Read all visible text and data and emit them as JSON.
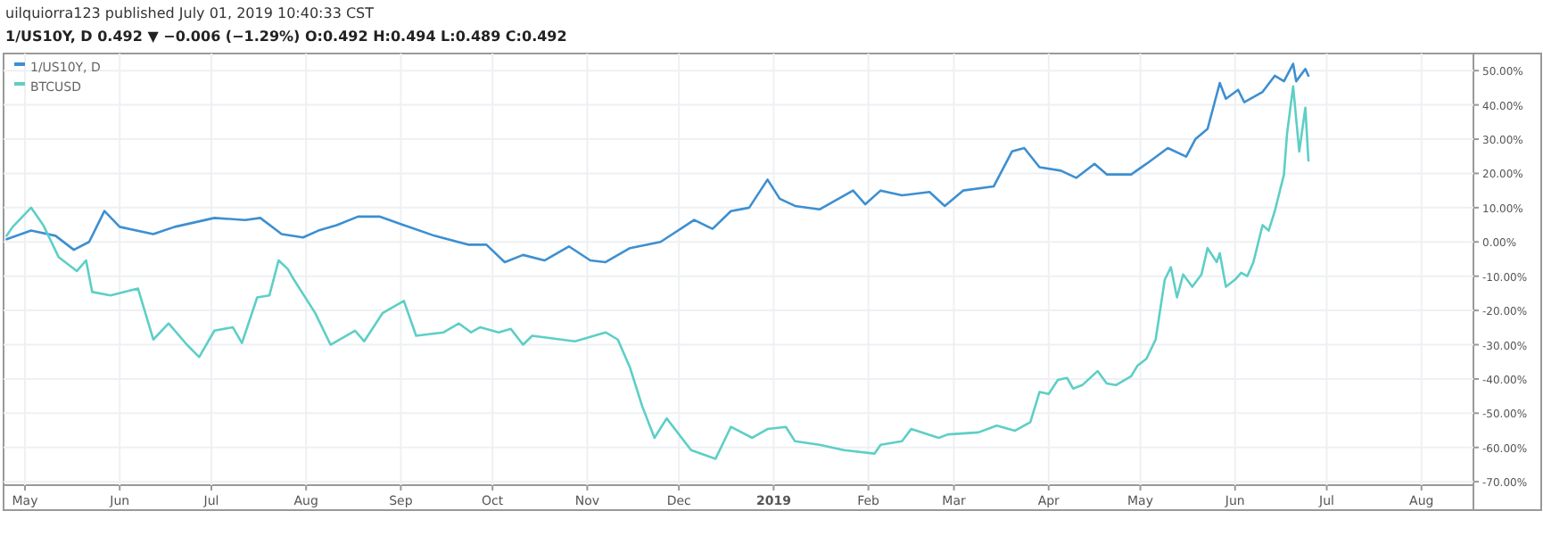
{
  "chart_data": {
    "type": "line",
    "title": "uilquiorra123 published July 01, 2019 10:40:33 CST",
    "subtitle": "1/US10Y, D 0.492 ▼ −0.006 (−1.29%) O:0.492 H:0.494 L:0.489 C:0.492",
    "xlim": [
      "2018-04-24",
      "2019-08-18"
    ],
    "xticks": [
      {
        "value": "2018-05-01",
        "label": "May"
      },
      {
        "value": "2018-06-01",
        "label": "Jun"
      },
      {
        "value": "2018-07-01",
        "label": "Jul"
      },
      {
        "value": "2018-08-01",
        "label": "Aug"
      },
      {
        "value": "2018-09-01",
        "label": "Sep"
      },
      {
        "value": "2018-10-01",
        "label": "Oct"
      },
      {
        "value": "2018-11-01",
        "label": "Nov"
      },
      {
        "value": "2018-12-01",
        "label": "Dec"
      },
      {
        "value": "2019-01-01",
        "label": "2019"
      },
      {
        "value": "2019-02-01",
        "label": "Feb"
      },
      {
        "value": "2019-03-01",
        "label": "Mar"
      },
      {
        "value": "2019-04-01",
        "label": "Apr"
      },
      {
        "value": "2019-05-01",
        "label": "May"
      },
      {
        "value": "2019-06-01",
        "label": "Jun"
      },
      {
        "value": "2019-07-01",
        "label": "Jul"
      },
      {
        "value": "2019-08-01",
        "label": "Aug"
      }
    ],
    "ylim": [
      -71,
      55
    ],
    "yticks": [
      {
        "value": 50,
        "label": "50.00%"
      },
      {
        "value": 40,
        "label": "40.00%"
      },
      {
        "value": 30,
        "label": "30.00%"
      },
      {
        "value": 20,
        "label": "20.00%"
      },
      {
        "value": 10,
        "label": "10.00%"
      },
      {
        "value": 0,
        "label": "0.00%"
      },
      {
        "value": -10,
        "label": "-10.00%"
      },
      {
        "value": -20,
        "label": "-20.00%"
      },
      {
        "value": -30,
        "label": "-30.00%"
      },
      {
        "value": -40,
        "label": "-40.00%"
      },
      {
        "value": -50,
        "label": "-50.00%"
      },
      {
        "value": -60,
        "label": "-60.00%"
      },
      {
        "value": -70,
        "label": "-70.00%"
      }
    ],
    "grid": true,
    "legend": "top left",
    "line_style": "solid",
    "marker": "none",
    "series": [
      {
        "name": "1/US10Y, D",
        "color": "#3d8fd1",
        "x": [
          "2018-04-25",
          "2018-05-03",
          "2018-05-11",
          "2018-05-17",
          "2018-05-22",
          "2018-05-27",
          "2018-06-01",
          "2018-06-12",
          "2018-06-19",
          "2018-07-02",
          "2018-07-12",
          "2018-07-17",
          "2018-07-24",
          "2018-07-31",
          "2018-08-05",
          "2018-08-11",
          "2018-08-18",
          "2018-08-25",
          "2018-09-02",
          "2018-09-12",
          "2018-09-23",
          "2018-09-29",
          "2018-10-05",
          "2018-10-11",
          "2018-10-18",
          "2018-10-26",
          "2018-11-02",
          "2018-11-07",
          "2018-11-15",
          "2018-11-25",
          "2018-12-06",
          "2018-12-12",
          "2018-12-18",
          "2018-12-24",
          "2018-12-30",
          "2019-01-03",
          "2019-01-08",
          "2019-01-16",
          "2019-01-27",
          "2019-01-31",
          "2019-02-05",
          "2019-02-12",
          "2019-02-21",
          "2019-02-26",
          "2019-03-04",
          "2019-03-14",
          "2019-03-20",
          "2019-03-24",
          "2019-03-29",
          "2019-04-05",
          "2019-04-10",
          "2019-04-16",
          "2019-04-20",
          "2019-04-28",
          "2019-05-03",
          "2019-05-10",
          "2019-05-16",
          "2019-05-19",
          "2019-05-23",
          "2019-05-27",
          "2019-05-29",
          "2019-06-02",
          "2019-06-04",
          "2019-06-10",
          "2019-06-14",
          "2019-06-17",
          "2019-06-20",
          "2019-06-21",
          "2019-06-24",
          "2019-06-25"
        ],
        "values": [
          0.8,
          3.3,
          1.8,
          -2.3,
          0,
          9,
          4.4,
          2.3,
          4.4,
          7,
          6.4,
          7,
          2.3,
          1.3,
          3.3,
          4.9,
          7.4,
          7.4,
          4.9,
          1.8,
          -0.8,
          -0.8,
          -5.9,
          -3.8,
          -5.4,
          -1.3,
          -5.4,
          -5.9,
          -1.8,
          0,
          6.4,
          3.8,
          9,
          10,
          18.2,
          12.6,
          10.5,
          9.5,
          15,
          11,
          15,
          13.6,
          14.6,
          10.5,
          15,
          16.2,
          26.4,
          27.4,
          21.8,
          20.8,
          18.7,
          22.8,
          19.7,
          19.7,
          22.8,
          27.4,
          24.9,
          30,
          33,
          46.4,
          41.8,
          44.4,
          40.8,
          43.8,
          48.5,
          46.9,
          52,
          46.9,
          50.5,
          48.5
        ]
      },
      {
        "name": "BTCUSD",
        "color": "#5dcfc6",
        "x": [
          "2018-04-25",
          "2018-04-27",
          "2018-05-03",
          "2018-05-07",
          "2018-05-12",
          "2018-05-18",
          "2018-05-21",
          "2018-05-23",
          "2018-05-29",
          "2018-06-07",
          "2018-06-12",
          "2018-06-17",
          "2018-06-23",
          "2018-06-27",
          "2018-07-02",
          "2018-07-08",
          "2018-07-11",
          "2018-07-16",
          "2018-07-20",
          "2018-07-23",
          "2018-07-26",
          "2018-07-28",
          "2018-08-04",
          "2018-08-09",
          "2018-08-17",
          "2018-08-20",
          "2018-08-26",
          "2018-09-02",
          "2018-09-06",
          "2018-09-15",
          "2018-09-20",
          "2018-09-24",
          "2018-09-27",
          "2018-10-03",
          "2018-10-07",
          "2018-10-11",
          "2018-10-14",
          "2018-10-28",
          "2018-11-07",
          "2018-11-11",
          "2018-11-15",
          "2018-11-19",
          "2018-11-23",
          "2018-11-27",
          "2018-12-05",
          "2018-12-13",
          "2018-12-18",
          "2018-12-25",
          "2018-12-30",
          "2019-01-05",
          "2019-01-08",
          "2019-01-16",
          "2019-01-24",
          "2019-02-03",
          "2019-02-05",
          "2019-02-12",
          "2019-02-15",
          "2019-02-24",
          "2019-02-27",
          "2019-03-09",
          "2019-03-15",
          "2019-03-21",
          "2019-03-26",
          "2019-03-29",
          "2019-04-01",
          "2019-04-04",
          "2019-04-07",
          "2019-04-09",
          "2019-04-12",
          "2019-04-17",
          "2019-04-20",
          "2019-04-23",
          "2019-04-28",
          "2019-04-30",
          "2019-05-03",
          "2019-05-06",
          "2019-05-09",
          "2019-05-11",
          "2019-05-13",
          "2019-05-15",
          "2019-05-18",
          "2019-05-21",
          "2019-05-23",
          "2019-05-26",
          "2019-05-27",
          "2019-05-29",
          "2019-06-01",
          "2019-06-03",
          "2019-06-05",
          "2019-06-07",
          "2019-06-10",
          "2019-06-12",
          "2019-06-14",
          "2019-06-17",
          "2019-06-18",
          "2019-06-20",
          "2019-06-22",
          "2019-06-24",
          "2019-06-25"
        ],
        "values": [
          1.8,
          4.4,
          10,
          4.9,
          -4.4,
          -8.5,
          -5.4,
          -14.6,
          -15.6,
          -13.6,
          -28.5,
          -23.8,
          -30,
          -33.6,
          -25.9,
          -24.9,
          -29.5,
          -16.2,
          -15.6,
          -5.4,
          -7.9,
          -11,
          -20.8,
          -30,
          -25.9,
          -29,
          -20.8,
          -17.2,
          -27.4,
          -26.4,
          -23.8,
          -26.4,
          -24.9,
          -26.4,
          -25.4,
          -30,
          -27.4,
          -29,
          -26.4,
          -28.5,
          -36.7,
          -48,
          -57.2,
          -51.5,
          -60.8,
          -63.3,
          -54,
          -57.2,
          -54.6,
          -54,
          -58.2,
          -59.2,
          -60.8,
          -61.8,
          -59.2,
          -58.2,
          -54.6,
          -57.2,
          -56.2,
          -55.6,
          -53.6,
          -55.1,
          -52.6,
          -43.8,
          -44.4,
          -40.3,
          -39.7,
          -42.8,
          -41.8,
          -37.7,
          -41.3,
          -41.8,
          -39.2,
          -36.2,
          -34.1,
          -28.5,
          -11,
          -7.4,
          -16.2,
          -9.5,
          -13.1,
          -9.5,
          -1.8,
          -5.9,
          -3.3,
          -13.1,
          -11,
          -9,
          -10,
          -5.9,
          4.9,
          3.3,
          9,
          19.7,
          31.5,
          45.4,
          26.4,
          39.2,
          23.8
        ]
      }
    ]
  }
}
